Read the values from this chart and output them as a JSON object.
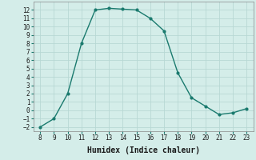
{
  "x": [
    8,
    9,
    10,
    11,
    12,
    13,
    14,
    15,
    16,
    17,
    18,
    19,
    20,
    21,
    22,
    23
  ],
  "y": [
    -2,
    -1,
    2,
    8,
    12,
    12.2,
    12.1,
    12,
    11,
    9.5,
    4.5,
    1.5,
    0.5,
    -0.5,
    -0.3,
    0.2
  ],
  "line_color": "#1a7a6e",
  "marker": "o",
  "marker_size": 2,
  "linewidth": 1.0,
  "xlabel": "Humidex (Indice chaleur)",
  "xlabel_fontsize": 7,
  "background_color": "#d4ede9",
  "grid_color": "#b8d8d4",
  "xlim": [
    7.5,
    23.5
  ],
  "ylim": [
    -2.5,
    13.0
  ],
  "xticks": [
    8,
    9,
    10,
    11,
    12,
    13,
    14,
    15,
    16,
    17,
    18,
    19,
    20,
    21,
    22,
    23
  ],
  "yticks": [
    -2,
    -1,
    0,
    1,
    2,
    3,
    4,
    5,
    6,
    7,
    8,
    9,
    10,
    11,
    12
  ],
  "tick_fontsize": 5.5
}
